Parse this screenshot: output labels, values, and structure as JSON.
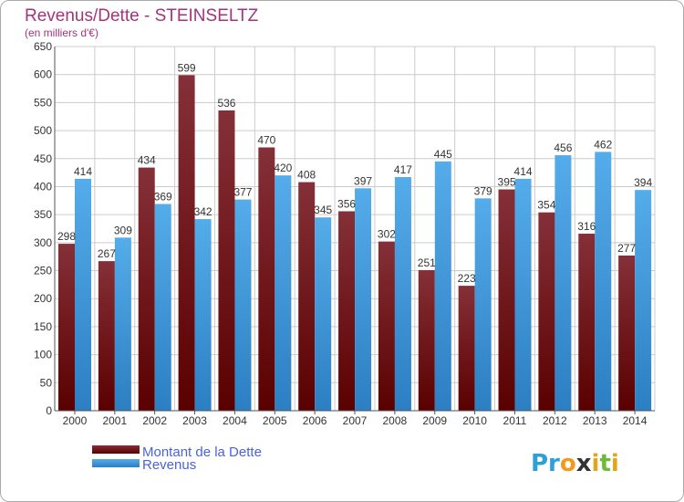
{
  "title": "Revenus/Dette - STEINSELTZ",
  "subtitle": "(en milliers d'€)",
  "logo": "Proxiti",
  "colors": {
    "debt": "#7a1f24",
    "debt_dark": "#5a0000",
    "revenue": "#4aa3e6",
    "revenue_dark": "#2c7fc2",
    "grid": "#cccccc",
    "title": "#a4337a",
    "legend": "#4a63d6"
  },
  "chart_data": {
    "type": "bar",
    "title": "Revenus/Dette - STEINSELTZ",
    "subtitle": "(en milliers d'€)",
    "categories": [
      "2000",
      "2001",
      "2002",
      "2003",
      "2004",
      "2005",
      "2006",
      "2007",
      "2008",
      "2009",
      "2010",
      "2011",
      "2012",
      "2013",
      "2014"
    ],
    "series": [
      {
        "name": "Montant de la Dette",
        "values": [
          298,
          267,
          434,
          599,
          536,
          470,
          408,
          356,
          302,
          251,
          223,
          395,
          354,
          316,
          277
        ]
      },
      {
        "name": "Revenus",
        "values": [
          414,
          309,
          369,
          342,
          377,
          420,
          345,
          397,
          417,
          445,
          379,
          414,
          456,
          462,
          394
        ]
      }
    ],
    "ylim": [
      0,
      650
    ],
    "yticks": [
      0,
      50,
      100,
      150,
      200,
      250,
      300,
      350,
      400,
      450,
      500,
      550,
      600,
      650
    ],
    "grid": true,
    "legend_position": "bottom-left"
  }
}
